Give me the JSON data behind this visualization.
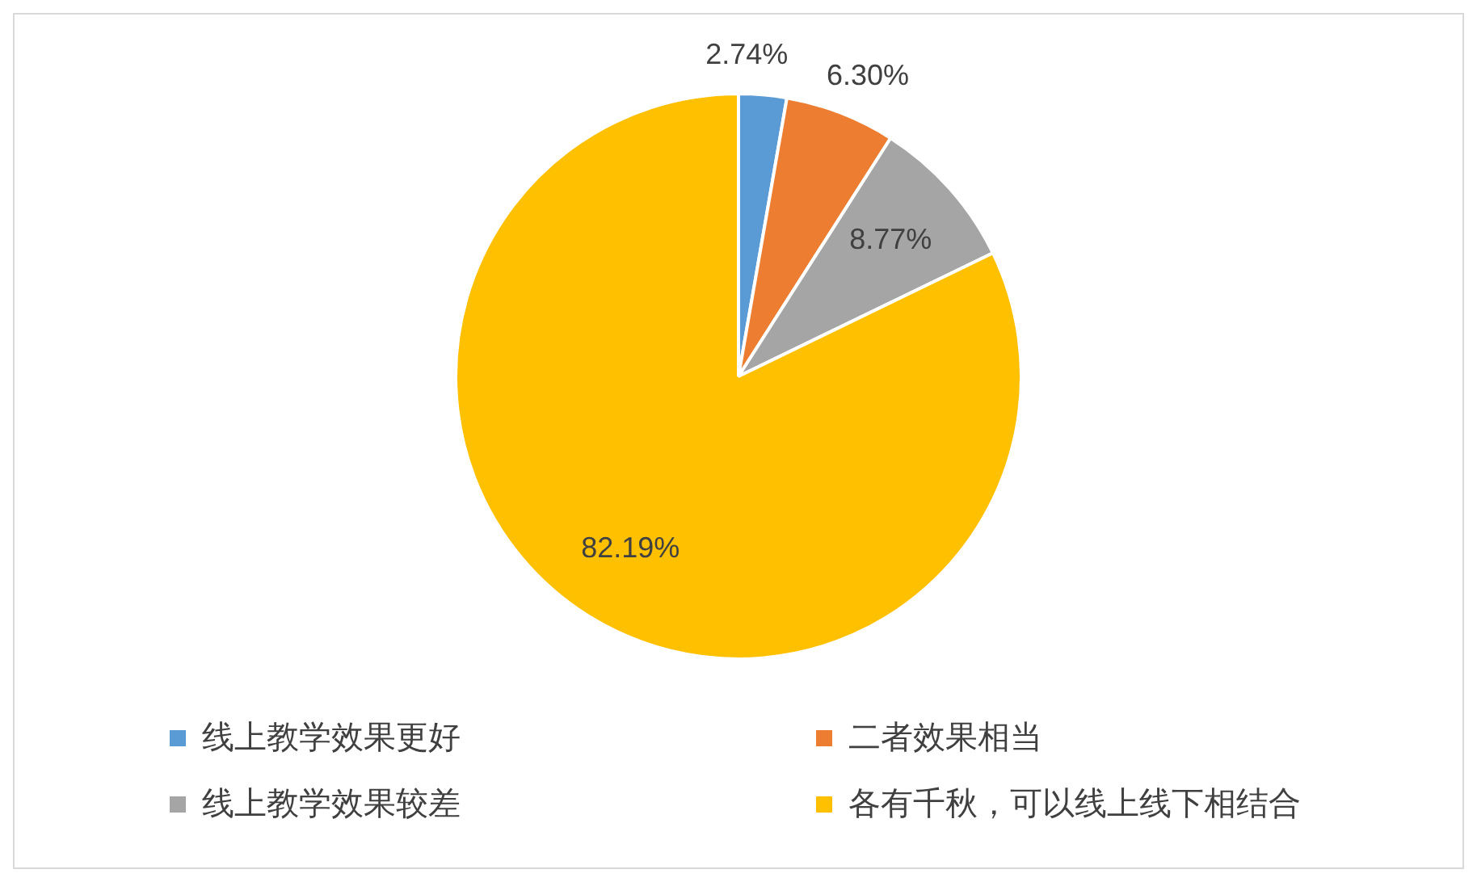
{
  "chart_data": {
    "type": "pie",
    "categories": [
      "线上教学效果更好",
      "二者效果相当",
      "线上教学效果较差",
      "各有千秋，可以线上线下相结合"
    ],
    "values": [
      2.74,
      6.3,
      8.77,
      82.19
    ],
    "colors": [
      "#5b9bd5",
      "#ed7d31",
      "#a5a5a5",
      "#ffc000"
    ],
    "value_labels": [
      "2.74%",
      "6.30%",
      "8.77%",
      "82.19%"
    ],
    "legend": "bottom"
  }
}
